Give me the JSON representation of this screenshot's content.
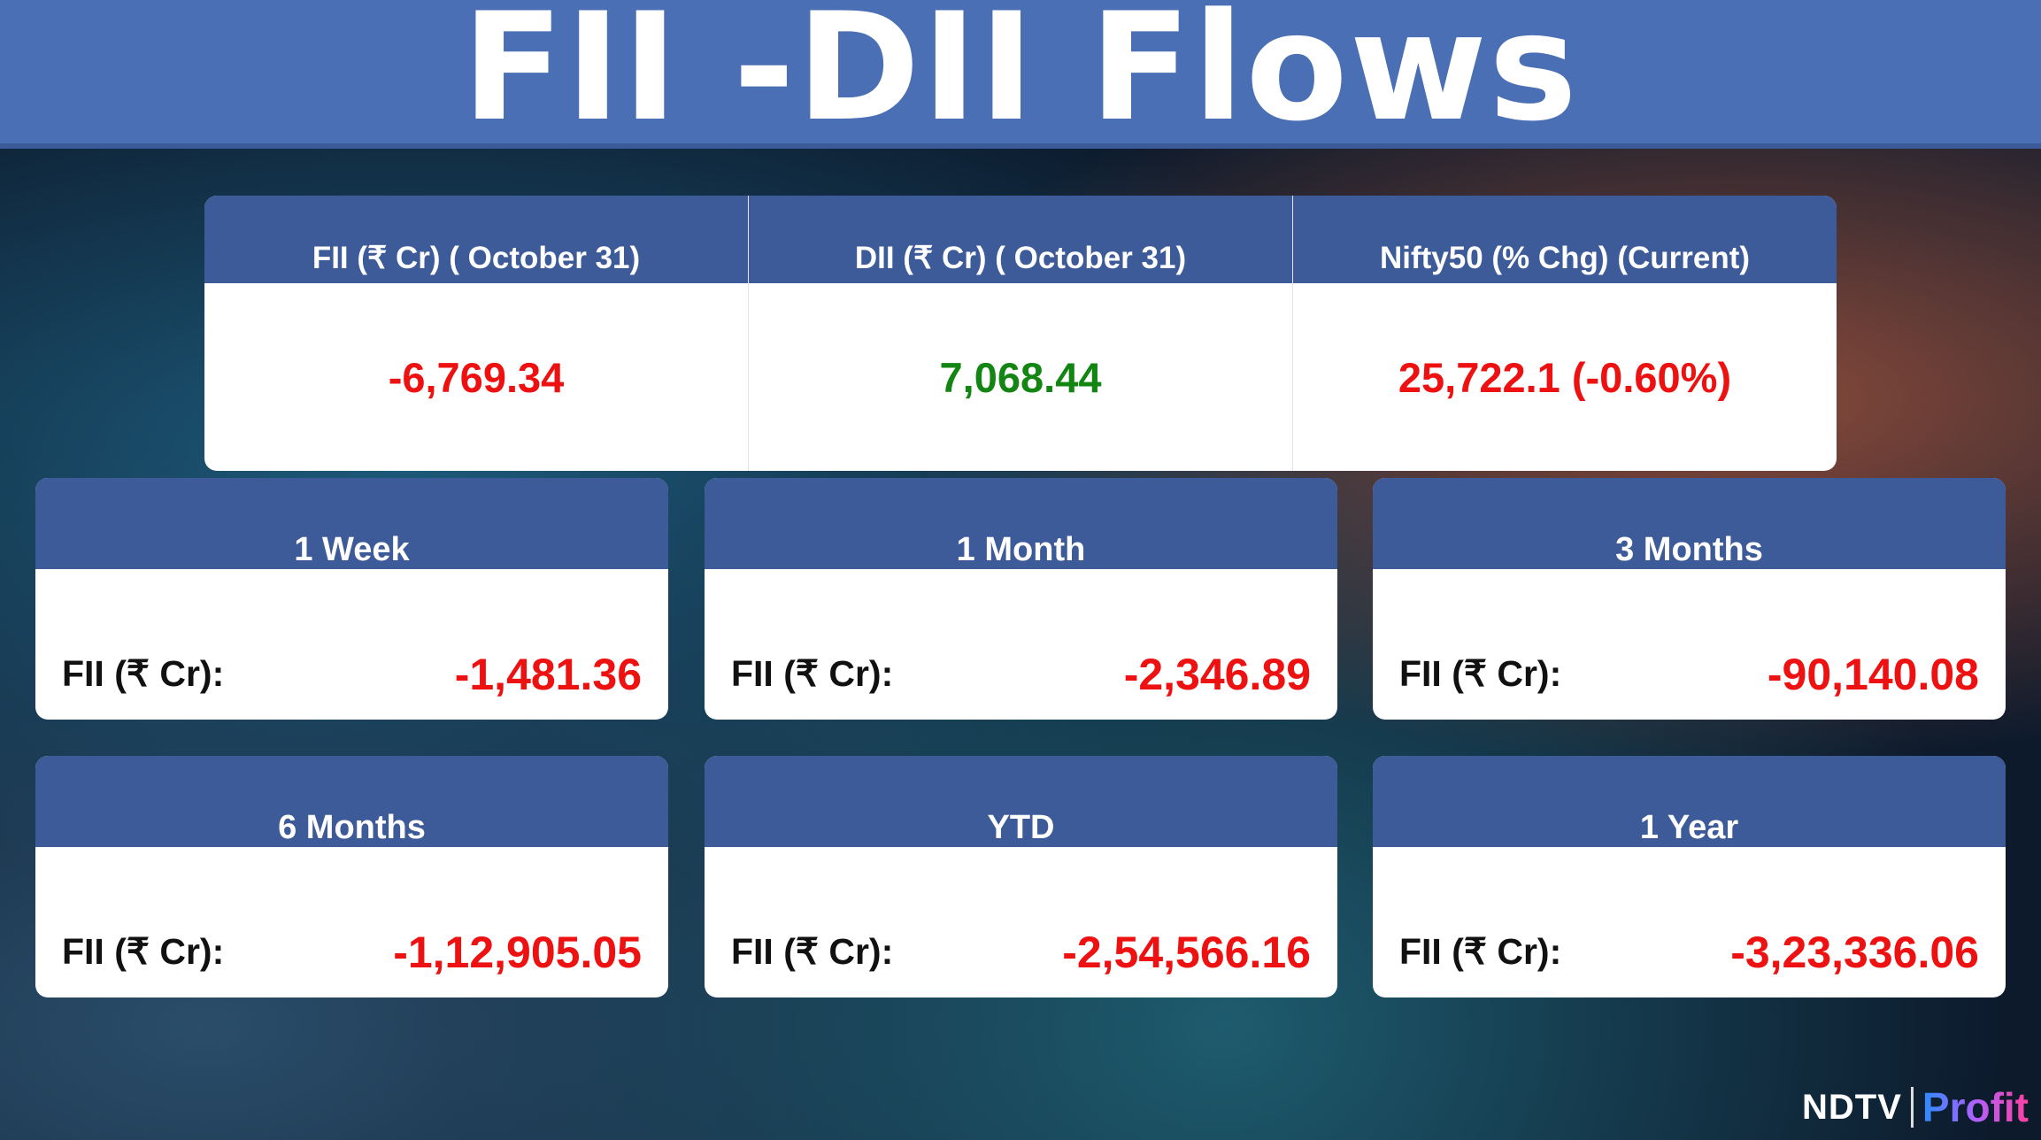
{
  "title": "FII -DII Flows",
  "summary": [
    {
      "header": "FII (₹ Cr) ( October 31)",
      "value": "-6,769.34",
      "color": "#ee1111"
    },
    {
      "header": "DII (₹ Cr) ( October 31)",
      "value": "7,068.44",
      "color": "#128512"
    },
    {
      "header": "Nifty50 (% Chg) (Current)",
      "value": "25,722.1 (-0.60%)",
      "color": "#ee1111"
    }
  ],
  "periods": [
    {
      "header": "1 Week",
      "label": "FII (₹ Cr):",
      "value": "-1,481.36"
    },
    {
      "header": "1 Month",
      "label": "FII (₹ Cr):",
      "value": "-2,346.89"
    },
    {
      "header": "3 Months",
      "label": "FII (₹ Cr):",
      "value": "-90,140.08"
    },
    {
      "header": "6 Months",
      "label": "FII (₹ Cr):",
      "value": "-1,12,905.05"
    },
    {
      "header": "YTD",
      "label": "FII (₹ Cr):",
      "value": "-2,54,566.16"
    },
    {
      "header": "1 Year",
      "label": "FII (₹ Cr):",
      "value": "-3,23,336.06"
    }
  ],
  "logo": {
    "brand": "NDTV",
    "sub": "Profit"
  }
}
